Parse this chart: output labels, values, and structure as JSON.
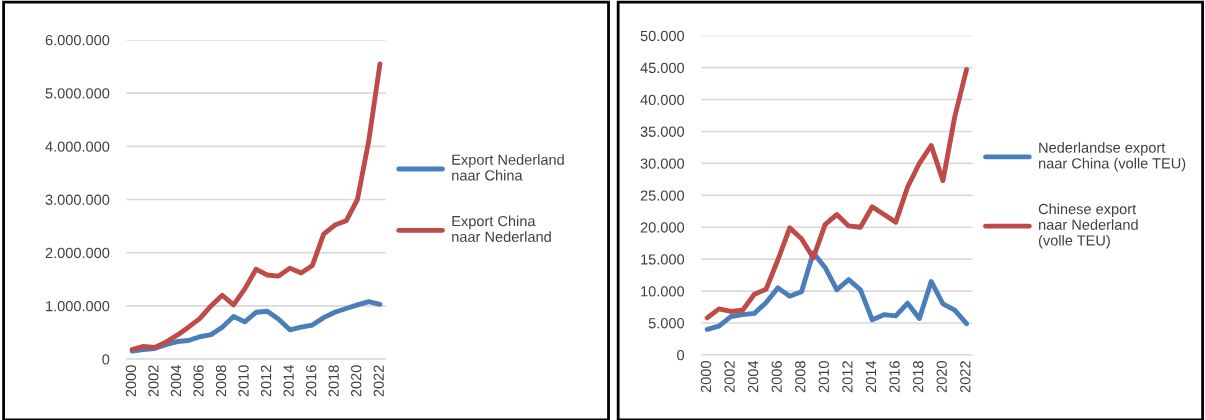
{
  "chart_data": [
    {
      "type": "line",
      "categories": [
        "2000",
        null,
        "2002",
        null,
        "2004",
        null,
        "2006",
        null,
        "2008",
        null,
        "2010",
        null,
        "2012",
        null,
        "2014",
        null,
        "2016",
        null,
        "2018",
        null,
        "2020",
        null,
        "2022"
      ],
      "series": [
        {
          "name": "Export Nederland\nnaar China",
          "color": "#4a7ebb",
          "values": [
            150000,
            180000,
            200000,
            270000,
            330000,
            350000,
            420000,
            460000,
            600000,
            800000,
            700000,
            880000,
            900000,
            750000,
            550000,
            600000,
            640000,
            780000,
            880000,
            950000,
            1020000,
            1080000,
            1030000
          ]
        },
        {
          "name": "Export China\nnaar Nederland",
          "color": "#be4b48",
          "values": [
            180000,
            240000,
            220000,
            320000,
            450000,
            600000,
            760000,
            1000000,
            1200000,
            1020000,
            1320000,
            1690000,
            1580000,
            1560000,
            1710000,
            1620000,
            1760000,
            2350000,
            2520000,
            2600000,
            3000000,
            4100000,
            5550000
          ]
        }
      ],
      "ylim": [
        0,
        6000000
      ],
      "yticks": [
        0,
        {
          "value": 1000000,
          "label": "1.000.000"
        },
        {
          "value": 2000000,
          "label": "2.000.000"
        },
        {
          "value": 3000000,
          "label": "3.000.000"
        },
        {
          "value": 4000000,
          "label": "4.000.000"
        },
        {
          "value": 5000000,
          "label": "5.000.000"
        },
        {
          "value": 6000000,
          "label": "6.000.000"
        }
      ],
      "grid": "y",
      "legend": "right"
    },
    {
      "type": "line",
      "categories": [
        "2000",
        null,
        "2002",
        null,
        "2004",
        null,
        "2006",
        null,
        "2008",
        null,
        "2010",
        null,
        "2012",
        null,
        "2014",
        null,
        "2016",
        null,
        "2018",
        null,
        "2020",
        null,
        "2022"
      ],
      "series": [
        {
          "name": "Nederlandse export\nnaar China (volle TEU)",
          "color": "#4a7ebb",
          "values": [
            4000,
            4500,
            6000,
            6300,
            6500,
            8200,
            10500,
            9200,
            9900,
            16000,
            13700,
            10200,
            11800,
            10200,
            5500,
            6300,
            6100,
            8100,
            5700,
            11500,
            8000,
            7000,
            4900
          ]
        },
        {
          "name": "Chinese export\nnaar Nederland\n(volle TEU)",
          "color": "#be4b48",
          "values": [
            5800,
            7200,
            6800,
            7000,
            9500,
            10300,
            14900,
            19900,
            18200,
            15200,
            20400,
            22000,
            20200,
            20000,
            23200,
            22000,
            20800,
            26300,
            30000,
            32800,
            27300,
            37300,
            44700
          ]
        }
      ],
      "ylim": [
        0,
        50000
      ],
      "yticks": [
        0,
        {
          "value": 5000,
          "label": "5.000"
        },
        {
          "value": 10000,
          "label": "10.000"
        },
        {
          "value": 15000,
          "label": "15.000"
        },
        {
          "value": 20000,
          "label": "20.000"
        },
        {
          "value": 25000,
          "label": "25.000"
        },
        {
          "value": 30000,
          "label": "30.000"
        },
        {
          "value": 35000,
          "label": "35.000"
        },
        {
          "value": 40000,
          "label": "40.000"
        },
        {
          "value": 45000,
          "label": "45.000"
        },
        {
          "value": 50000,
          "label": "50.000"
        }
      ],
      "grid": "y",
      "legend": "right"
    }
  ]
}
